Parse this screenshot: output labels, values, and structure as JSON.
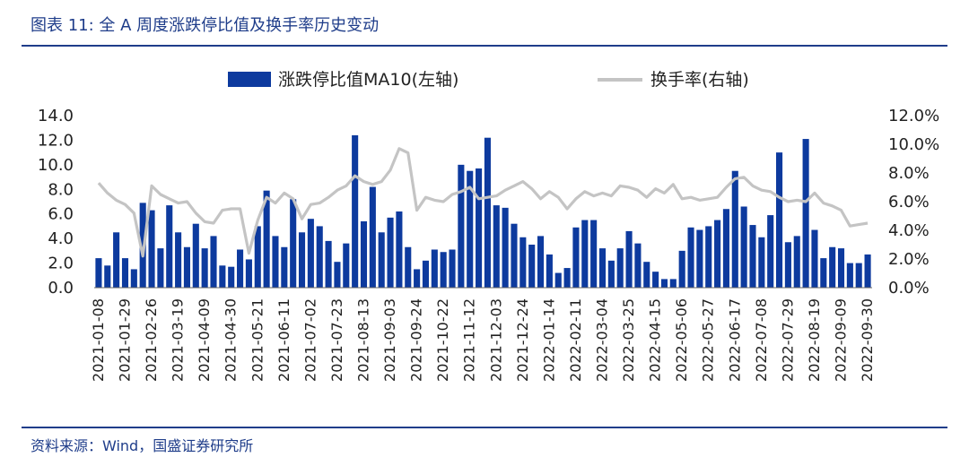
{
  "header": {
    "title": "图表 11:  全 A 周度涨跌停比值及换手率历史变动"
  },
  "footer": {
    "source": "资料来源：Wind，国盛证券研究所"
  },
  "colors": {
    "bar": "#0d3a9e",
    "line": "#c4c4c4",
    "accent": "#1f3d8a"
  },
  "chart_data": {
    "type": "bar",
    "legend": {
      "placement": "top-center",
      "bar_label": "涨跌停比值MA10(左轴)",
      "line_label": "换手率(右轴)"
    },
    "y_left": {
      "ylim": [
        0,
        14
      ],
      "ticks": [
        "0.0",
        "2.0",
        "4.0",
        "6.0",
        "8.0",
        "10.0",
        "12.0",
        "14.0"
      ]
    },
    "y_right": {
      "ylim": [
        0,
        0.12
      ],
      "ticks": [
        "0.0%",
        "2.0%",
        "4.0%",
        "6.0%",
        "8.0%",
        "10.0%",
        "12.0%"
      ]
    },
    "x_tick_labels": [
      "2021-01-08",
      "2021-01-29",
      "2021-02-26",
      "2021-03-19",
      "2021-04-09",
      "2021-04-30",
      "2021-05-21",
      "2021-06-11",
      "2021-07-02",
      "2021-07-23",
      "2021-08-13",
      "2021-09-03",
      "2021-09-24",
      "2021-10-22",
      "2021-11-12",
      "2021-12-03",
      "2021-12-24",
      "2022-01-14",
      "2022-02-11",
      "2022-03-04",
      "2022-03-25",
      "2022-04-15",
      "2022-05-06",
      "2022-05-27",
      "2022-06-17",
      "2022-07-08",
      "2022-07-29",
      "2022-08-19",
      "2022-09-09",
      "2022-09-30"
    ],
    "grid": false,
    "series": [
      {
        "name": "涨跌停比值MA10(左轴)",
        "kind": "bar",
        "values": [
          2.4,
          1.8,
          4.5,
          2.4,
          1.5,
          6.9,
          6.3,
          3.2,
          6.7,
          4.5,
          3.3,
          5.2,
          3.2,
          4.2,
          1.8,
          1.7,
          3.1,
          2.3,
          5.0,
          7.9,
          4.2,
          3.3,
          7.2,
          4.5,
          5.6,
          5.0,
          3.8,
          2.1,
          3.6,
          12.4,
          5.4,
          8.2,
          4.5,
          5.7,
          6.2,
          3.3,
          1.5,
          2.2,
          3.1,
          2.9,
          3.1,
          10.0,
          9.5,
          9.7,
          12.2,
          6.7,
          6.5,
          5.2,
          4.1,
          3.5,
          4.2,
          2.7,
          1.2,
          1.6,
          4.9,
          5.5,
          5.5,
          3.2,
          2.2,
          3.2,
          4.6,
          3.6,
          2.1,
          1.3,
          0.7,
          0.7,
          3.0,
          4.9,
          4.7,
          5.0,
          5.5,
          6.4,
          9.5,
          6.6,
          5.1,
          4.1,
          5.9,
          11.0,
          3.7,
          4.2,
          12.1,
          4.7,
          2.4,
          3.3,
          3.2,
          2.0,
          2.0,
          2.7
        ]
      },
      {
        "name": "换手率(右轴)",
        "kind": "line",
        "values": [
          0.073,
          0.066,
          0.061,
          0.058,
          0.052,
          0.022,
          0.071,
          0.065,
          0.062,
          0.059,
          0.06,
          0.052,
          0.046,
          0.045,
          0.054,
          0.055,
          0.055,
          0.024,
          0.047,
          0.063,
          0.059,
          0.066,
          0.062,
          0.048,
          0.058,
          0.059,
          0.063,
          0.068,
          0.071,
          0.078,
          0.074,
          0.072,
          0.074,
          0.082,
          0.097,
          0.094,
          0.054,
          0.063,
          0.061,
          0.06,
          0.065,
          0.067,
          0.07,
          0.062,
          0.063,
          0.064,
          0.068,
          0.071,
          0.074,
          0.069,
          0.062,
          0.067,
          0.063,
          0.055,
          0.062,
          0.067,
          0.064,
          0.066,
          0.064,
          0.071,
          0.07,
          0.068,
          0.063,
          0.069,
          0.066,
          0.072,
          0.062,
          0.063,
          0.061,
          0.062,
          0.063,
          0.07,
          0.076,
          0.077,
          0.071,
          0.068,
          0.067,
          0.063,
          0.06,
          0.061,
          0.06,
          0.066,
          0.059,
          0.057,
          0.054,
          0.043,
          0.044,
          0.045
        ]
      }
    ]
  }
}
